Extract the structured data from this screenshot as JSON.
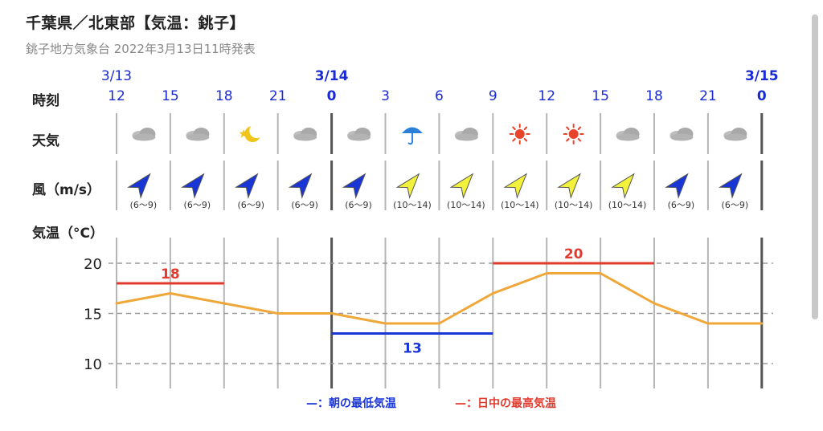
{
  "header": {
    "title": "千葉県／北東部【気温：銚子】",
    "subtitle": "銚子地方気象台 2022年3月13日11時発表"
  },
  "rows": {
    "time_label": "時刻",
    "weather_label": "天気",
    "wind_label": "風（m/s）",
    "temp_label": "気温（°C）"
  },
  "dates": [
    {
      "label": "3/13",
      "bold": false
    },
    {
      "label": "3/14",
      "bold": true
    },
    {
      "label": "3/15",
      "bold": true
    }
  ],
  "hours": [
    "12",
    "15",
    "18",
    "21",
    "0",
    "3",
    "6",
    "9",
    "12",
    "15",
    "18",
    "21",
    "0"
  ],
  "weather_icons": [
    "cloud-icon",
    "cloud-icon",
    "moon-icon",
    "cloud-icon",
    "cloud-icon",
    "umbrella-icon",
    "cloud-icon",
    "sun-icon",
    "sun-icon",
    "cloud-icon",
    "cloud-icon",
    "cloud-icon"
  ],
  "wind": [
    {
      "range": "(6〜9)",
      "color": "#1a35d6"
    },
    {
      "range": "(6〜9)",
      "color": "#1a35d6"
    },
    {
      "range": "(6〜9)",
      "color": "#1a35d6"
    },
    {
      "range": "(6〜9)",
      "color": "#1a35d6"
    },
    {
      "range": "(6〜9)",
      "color": "#1a35d6"
    },
    {
      "range": "(10〜14)",
      "color": "#f2f23c"
    },
    {
      "range": "(10〜14)",
      "color": "#f2f23c"
    },
    {
      "range": "(10〜14)",
      "color": "#f2f23c"
    },
    {
      "range": "(10〜14)",
      "color": "#f2f23c"
    },
    {
      "range": "(10〜14)",
      "color": "#f2f23c"
    },
    {
      "range": "(6〜9)",
      "color": "#1a35d6"
    },
    {
      "range": "(6〜9)",
      "color": "#1a35d6"
    }
  ],
  "chart_data": {
    "type": "line",
    "x": [
      "3/13 12",
      "15",
      "18",
      "21",
      "3/14 0",
      "3",
      "6",
      "9",
      "12",
      "15",
      "18",
      "21",
      "3/15 0"
    ],
    "series": [
      {
        "values": [
          16,
          17,
          16,
          15,
          15,
          14,
          14,
          17,
          19,
          19,
          16,
          14,
          14
        ],
        "color": "#f0a73a"
      }
    ],
    "min_temp": {
      "value": 13,
      "from_index": 4,
      "to_index": 7,
      "color": "#1a35d6"
    },
    "max_temps": [
      {
        "value": 18,
        "from_index": 0,
        "to_index": 2,
        "color": "#e23b2e"
      },
      {
        "value": 20,
        "from_index": 7,
        "to_index": 10,
        "color": "#e23b2e"
      }
    ],
    "yticks": [
      20,
      15,
      10
    ],
    "ylim": [
      8,
      22
    ],
    "grid": true
  },
  "legend": {
    "min_label": "—：朝の最低気温",
    "max_label": "—：日中の最高気温",
    "min_color": "#1a35d6",
    "max_color": "#e23b2e"
  }
}
